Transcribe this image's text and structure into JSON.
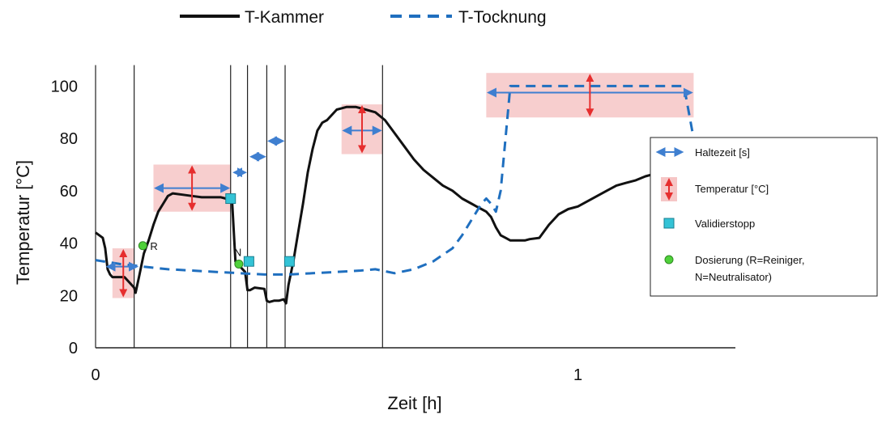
{
  "chart_data": {
    "type": "line",
    "title": "",
    "xlabel": "Zeit [h]",
    "ylabel": "Temperatur [°C]",
    "xlim": [
      0,
      1.33
    ],
    "ylim": [
      0,
      110
    ],
    "xticks": [
      0,
      1
    ],
    "yticks": [
      0,
      20,
      40,
      60,
      80,
      100
    ],
    "grid": false,
    "legend_top": [
      {
        "name": "T-Kammer",
        "style": "solid",
        "color": "#111111"
      },
      {
        "name": "T-Tocknung",
        "style": "dashed",
        "color": "#1f6fbf"
      }
    ],
    "series": [
      {
        "name": "T-Kammer",
        "x": [
          0,
          0.015,
          0.02,
          0.025,
          0.03,
          0.035,
          0.06,
          0.07,
          0.08,
          0.083,
          0.09,
          0.1,
          0.11,
          0.12,
          0.13,
          0.14,
          0.15,
          0.16,
          0.18,
          0.2,
          0.22,
          0.24,
          0.26,
          0.27,
          0.28,
          0.283,
          0.29,
          0.3,
          0.31,
          0.315,
          0.32,
          0.33,
          0.35,
          0.355,
          0.36,
          0.37,
          0.38,
          0.39,
          0.395,
          0.4,
          0.41,
          0.42,
          0.43,
          0.44,
          0.45,
          0.46,
          0.47,
          0.48,
          0.49,
          0.5,
          0.51,
          0.52,
          0.53,
          0.54,
          0.56,
          0.58,
          0.6,
          0.62,
          0.64,
          0.66,
          0.68,
          0.7,
          0.72,
          0.74,
          0.76,
          0.78,
          0.79,
          0.8,
          0.81,
          0.82,
          0.83,
          0.84,
          0.85,
          0.86,
          0.87,
          0.88,
          0.885,
          0.89,
          0.9,
          0.92,
          0.94,
          0.96,
          0.98,
          1.0,
          1.02,
          1.04,
          1.06,
          1.08,
          1.1,
          1.12,
          1.14,
          1.16,
          1.18,
          1.2,
          1.22,
          1.24
        ],
        "values": [
          44,
          42,
          38,
          30,
          28,
          27,
          27,
          25,
          23,
          21,
          27,
          36,
          41,
          47,
          52,
          55,
          58,
          59,
          58.5,
          58,
          57.5,
          57.5,
          57.5,
          57,
          56.5,
          56.5,
          33,
          31,
          29,
          22,
          22,
          23,
          22.5,
          18,
          17.5,
          18,
          18,
          18.5,
          17,
          24,
          33,
          44,
          55,
          67,
          76,
          83,
          86,
          87,
          89,
          91,
          91.5,
          92,
          92,
          92,
          91,
          90,
          87,
          82,
          77,
          72,
          68,
          65,
          62,
          60,
          57,
          55,
          54,
          53,
          52,
          50,
          46,
          43,
          42,
          41,
          41,
          41,
          41,
          41,
          41.5,
          42,
          47,
          51,
          53,
          54,
          56,
          58,
          60,
          62,
          63,
          64,
          65.5,
          66.5,
          67,
          67.5,
          68.5,
          69
        ]
      },
      {
        "name": "T-Tocknung",
        "x": [
          0,
          0.05,
          0.1,
          0.15,
          0.2,
          0.25,
          0.3,
          0.35,
          0.4,
          0.45,
          0.5,
          0.55,
          0.58,
          0.62,
          0.66,
          0.7,
          0.74,
          0.76,
          0.78,
          0.8,
          0.81,
          0.82,
          0.83,
          0.84,
          0.86,
          0.9,
          0.95,
          1.0,
          1.05,
          1.1,
          1.15,
          1.2,
          1.22,
          1.24
        ],
        "values": [
          33.5,
          32,
          31,
          30,
          29.5,
          29,
          28.5,
          28,
          28,
          28.5,
          29,
          29.5,
          30,
          28.5,
          30,
          33,
          38,
          43,
          49,
          55,
          57,
          55,
          52,
          60,
          100,
          100,
          100,
          100,
          100,
          100,
          100,
          100,
          100,
          80
        ]
      }
    ],
    "phase_lines_x": [
      0,
      0.08,
      0.28,
      0.315,
      0.355,
      0.393,
      0.595
    ],
    "annotations": {
      "haltezeit_arrows": [
        {
          "x1": 0.02,
          "x2": 0.09,
          "y": 31
        },
        {
          "x1": 0.12,
          "x2": 0.28,
          "y": 61
        },
        {
          "x1": 0.283,
          "x2": 0.315,
          "y": 67
        },
        {
          "x1": 0.318,
          "x2": 0.355,
          "y": 73
        },
        {
          "x1": 0.355,
          "x2": 0.393,
          "y": 79
        },
        {
          "x1": 0.51,
          "x2": 0.595,
          "y": 83
        },
        {
          "x1": 0.81,
          "x2": 1.24,
          "y": 97.5
        }
      ],
      "temperatur_bands": [
        {
          "x1": 0.035,
          "x2": 0.08,
          "y1": 19,
          "y2": 38
        },
        {
          "x1": 0.12,
          "x2": 0.28,
          "y1": 52,
          "y2": 70
        },
        {
          "x1": 0.51,
          "x2": 0.595,
          "y1": 74,
          "y2": 93
        },
        {
          "x1": 0.81,
          "x2": 1.24,
          "y1": 88,
          "y2": 105
        }
      ],
      "validierstopp": [
        {
          "x": 0.28,
          "y": 57
        },
        {
          "x": 0.318,
          "y": 33
        },
        {
          "x": 0.402,
          "y": 33
        }
      ],
      "dosierung": [
        {
          "x": 0.098,
          "y": 39,
          "label": "R"
        },
        {
          "x": 0.297,
          "y": 32,
          "label": "N"
        }
      ]
    },
    "inset_legend": [
      {
        "symbol": "blue-double-arrow",
        "label": "Haltezeit [s]"
      },
      {
        "symbol": "red-arrow-band",
        "label": "Temperatur [°C]"
      },
      {
        "symbol": "cyan-square",
        "label": "Validierstopp"
      },
      {
        "symbol": "green-dot",
        "label": "Dosierung (R=Reiniger,"
      },
      {
        "symbol": "",
        "label": "N=Neutralisator)"
      }
    ],
    "colors": {
      "kammer": "#111111",
      "tocknung": "#1f6fbf",
      "haltezeit": "#3f7fd0",
      "temperatur_arrow": "#e62e2e",
      "temperatur_band": "#f6c6c6",
      "validierstopp": "#34c3d6",
      "dosierung": "#4fd13a"
    }
  }
}
